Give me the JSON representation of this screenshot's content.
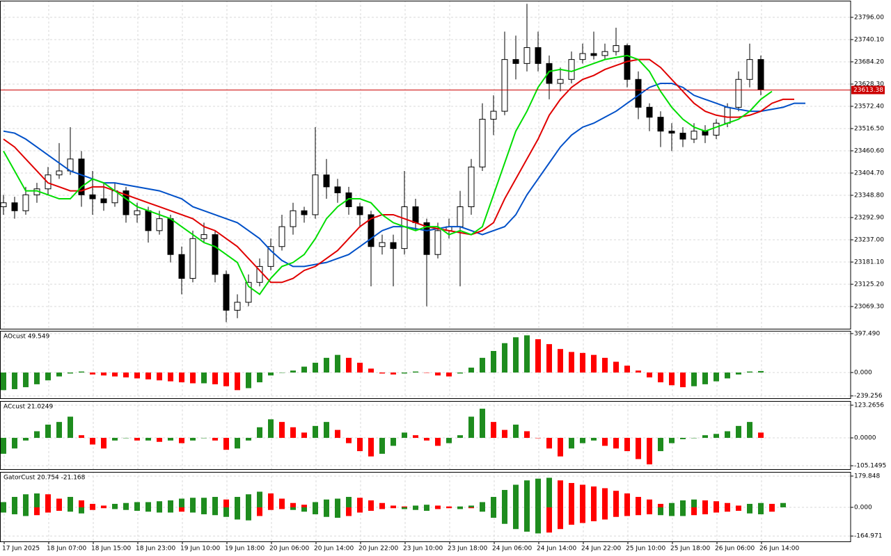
{
  "chart_data": [
    {
      "type": "candlestick",
      "categories": [
        "17 Jun 2025",
        null,
        null,
        null,
        "18 Jun 07:00",
        null,
        null,
        null,
        "18 Jun 15:00",
        null,
        null,
        null,
        "18 Jun 23:00",
        null,
        null,
        null,
        "19 Jun 10:00",
        null,
        null,
        null,
        "19 Jun 18:00",
        null,
        null,
        null,
        "20 Jun 06:00",
        null,
        null,
        null,
        "20 Jun 14:00",
        null,
        null,
        null,
        "20 Jun 22:00",
        null,
        null,
        null,
        "23 Jun 10:00",
        null,
        null,
        null,
        "23 Jun 18:00",
        null,
        null,
        null,
        "24 Jun 06:00",
        null,
        null,
        null,
        "24 Jun 14:00",
        null,
        null,
        null,
        "24 Jun 22:00",
        null,
        null,
        null,
        "25 Jun 10:00",
        null,
        null,
        null,
        "25 Jun 18:00",
        null,
        null,
        null,
        "26 Jun 06:00",
        null,
        null,
        null,
        "26 Jun 14:00",
        null,
        null,
        null,
        null
      ],
      "candles": [
        [
          23320,
          23350,
          23300,
          23330
        ],
        [
          23330,
          23345,
          23290,
          23310
        ],
        [
          23310,
          23370,
          23300,
          23350
        ],
        [
          23350,
          23380,
          23330,
          23365
        ],
        [
          23365,
          23420,
          23350,
          23400
        ],
        [
          23400,
          23480,
          23390,
          23410
        ],
        [
          23410,
          23520,
          23400,
          23440
        ],
        [
          23440,
          23460,
          23320,
          23350
        ],
        [
          23350,
          23410,
          23300,
          23340
        ],
        [
          23340,
          23380,
          23310,
          23330
        ],
        [
          23330,
          23380,
          23320,
          23360
        ],
        [
          23360,
          23370,
          23280,
          23300
        ],
        [
          23300,
          23330,
          23280,
          23310
        ],
        [
          23310,
          23320,
          23230,
          23260
        ],
        [
          23260,
          23310,
          23250,
          23290
        ],
        [
          23290,
          23300,
          23180,
          23200
        ],
        [
          23200,
          23220,
          23100,
          23140
        ],
        [
          23140,
          23260,
          23130,
          23240
        ],
        [
          23240,
          23280,
          23230,
          23250
        ],
        [
          23250,
          23260,
          23130,
          23150
        ],
        [
          23150,
          23160,
          23030,
          23060
        ],
        [
          23060,
          23100,
          23040,
          23080
        ],
        [
          23080,
          23150,
          23070,
          23130
        ],
        [
          23130,
          23190,
          23120,
          23170
        ],
        [
          23170,
          23240,
          23160,
          23220
        ],
        [
          23220,
          23300,
          23210,
          23270
        ],
        [
          23270,
          23330,
          23250,
          23310
        ],
        [
          23310,
          23320,
          23280,
          23300
        ],
        [
          23300,
          23520,
          23290,
          23400
        ],
        [
          23400,
          23440,
          23340,
          23370
        ],
        [
          23370,
          23390,
          23330,
          23355
        ],
        [
          23355,
          23370,
          23300,
          23320
        ],
        [
          23320,
          23330,
          23270,
          23300
        ],
        [
          23300,
          23310,
          23120,
          23220
        ],
        [
          23220,
          23250,
          23200,
          23230
        ],
        [
          23230,
          23250,
          23120,
          23215
        ],
        [
          23215,
          23410,
          23200,
          23320
        ],
        [
          23320,
          23340,
          23260,
          23280
        ],
        [
          23280,
          23290,
          23070,
          23200
        ],
        [
          23200,
          23280,
          23190,
          23260
        ],
        [
          23260,
          23290,
          23240,
          23270
        ],
        [
          23270,
          23360,
          23120,
          23320
        ],
        [
          23320,
          23440,
          23300,
          23420
        ],
        [
          23420,
          23580,
          23410,
          23540
        ],
        [
          23540,
          23600,
          23500,
          23560
        ],
        [
          23560,
          23760,
          23550,
          23690
        ],
        [
          23690,
          23750,
          23640,
          23680
        ],
        [
          23680,
          23830,
          23660,
          23720
        ],
        [
          23720,
          23760,
          23660,
          23680
        ],
        [
          23680,
          23700,
          23590,
          23630
        ],
        [
          23630,
          23670,
          23610,
          23640
        ],
        [
          23640,
          23710,
          23630,
          23690
        ],
        [
          23690,
          23730,
          23680,
          23705
        ],
        [
          23705,
          23760,
          23690,
          23700
        ],
        [
          23700,
          23730,
          23690,
          23710
        ],
        [
          23710,
          23770,
          23700,
          23725
        ],
        [
          23725,
          23730,
          23620,
          23640
        ],
        [
          23640,
          23660,
          23540,
          23570
        ],
        [
          23570,
          23580,
          23510,
          23545
        ],
        [
          23545,
          23560,
          23470,
          23510
        ],
        [
          23510,
          23530,
          23460,
          23505
        ],
        [
          23505,
          23520,
          23470,
          23490
        ],
        [
          23490,
          23530,
          23480,
          23510
        ],
        [
          23510,
          23525,
          23480,
          23500
        ],
        [
          23500,
          23540,
          23490,
          23530
        ],
        [
          23530,
          23580,
          23520,
          23570
        ],
        [
          23570,
          23660,
          23560,
          23640
        ],
        [
          23640,
          23730,
          23620,
          23690
        ],
        [
          23690,
          23700,
          23600,
          23613.38
        ],
        null,
        null,
        null,
        null
      ],
      "up_color": "#ffffff",
      "down_color": "#000000",
      "series": [
        {
          "color": "#0050c8",
          "values": [
            23510,
            23505,
            23490,
            23470,
            23450,
            23430,
            23410,
            23400,
            23390,
            23380,
            23380,
            23375,
            23370,
            23365,
            23360,
            23350,
            23340,
            23320,
            23310,
            23300,
            23290,
            23280,
            23260,
            23240,
            23210,
            23185,
            23170,
            23170,
            23175,
            23180,
            23190,
            23200,
            23220,
            23240,
            23260,
            23270,
            23270,
            23265,
            23260,
            23265,
            23270,
            23270,
            23260,
            23250,
            23260,
            23270,
            23300,
            23350,
            23390,
            23430,
            23470,
            23500,
            23520,
            23530,
            23545,
            23560,
            23580,
            23600,
            23620,
            23630,
            23630,
            23620,
            23600,
            23590,
            23580,
            23570,
            23565,
            23560,
            23560,
            23565,
            23570,
            23580,
            23580
          ]
        },
        {
          "color": "#e00000",
          "values": [
            23490,
            23470,
            23440,
            23410,
            23380,
            23370,
            23360,
            23360,
            23370,
            23370,
            23360,
            23350,
            23340,
            23330,
            23320,
            23310,
            23300,
            23290,
            23270,
            23260,
            23240,
            23220,
            23190,
            23160,
            23130,
            23130,
            23140,
            23160,
            23170,
            23190,
            23210,
            23240,
            23270,
            23290,
            23300,
            23300,
            23290,
            23280,
            23270,
            23265,
            23260,
            23255,
            23250,
            23260,
            23280,
            23340,
            23390,
            23440,
            23490,
            23550,
            23590,
            23620,
            23640,
            23650,
            23665,
            23675,
            23685,
            23690,
            23690,
            23670,
            23640,
            23610,
            23580,
            23560,
            23550,
            23545,
            23545,
            23550,
            23560,
            23580,
            23590,
            23590,
            null
          ]
        },
        {
          "color": "#00dd00",
          "values": [
            23460,
            23410,
            23360,
            23360,
            23350,
            23340,
            23340,
            23370,
            23390,
            23380,
            23360,
            23340,
            23320,
            23310,
            23300,
            23290,
            23270,
            23250,
            23230,
            23220,
            23200,
            23180,
            23120,
            23100,
            23140,
            23170,
            23180,
            23200,
            23240,
            23290,
            23320,
            23340,
            23340,
            23330,
            23300,
            23280,
            23270,
            23260,
            23270,
            23270,
            23250,
            23260,
            23250,
            23270,
            23350,
            23430,
            23510,
            23560,
            23620,
            23660,
            23665,
            23660,
            23670,
            23680,
            23690,
            23695,
            23700,
            23690,
            23660,
            23610,
            23570,
            23540,
            23520,
            23510,
            23520,
            23530,
            23540,
            23560,
            23590,
            23610,
            null,
            null,
            null
          ]
        }
      ],
      "current_price": 23613.38,
      "price_line_color": "#cc0000",
      "ylim": [
        23013.5,
        23837.8
      ],
      "yticks": [
        {
          "value": 23796,
          "label": "23796.00"
        },
        {
          "value": 23740.1,
          "label": "23740.10"
        },
        {
          "value": 23684.2,
          "label": "23684.20"
        },
        {
          "value": 23628.3,
          "label": "23628.30"
        },
        {
          "value": 23572.4,
          "label": "23572.40"
        },
        {
          "value": 23516.5,
          "label": "23516.50"
        },
        {
          "value": 23460.6,
          "label": "23460.60"
        },
        {
          "value": 23404.7,
          "label": "23404.70"
        },
        {
          "value": 23348.8,
          "label": "23348.80"
        },
        {
          "value": 23292.9,
          "label": "23292.90"
        },
        {
          "value": 23237,
          "label": "23237.00"
        },
        {
          "value": 23181.1,
          "label": "23181.10"
        },
        {
          "value": 23125.2,
          "label": "23125.20"
        },
        {
          "value": 23069.3,
          "label": "23069.30"
        }
      ],
      "grid": true
    },
    {
      "type": "histogram",
      "title": "AOcust 49.549",
      "up_color": "#1e8c1e",
      "down_color": "#ff0000",
      "values": [
        -180,
        -170,
        -150,
        -120,
        -80,
        -40,
        -10,
        10,
        -20,
        -30,
        -40,
        -50,
        -60,
        -70,
        -80,
        -90,
        -100,
        -110,
        -110,
        -120,
        -140,
        -180,
        -160,
        -100,
        -30,
        0,
        20,
        60,
        100,
        150,
        180,
        150,
        100,
        40,
        -10,
        -20,
        -10,
        10,
        0,
        -30,
        -40,
        -10,
        50,
        150,
        220,
        300,
        360,
        380,
        340,
        290,
        240,
        210,
        200,
        180,
        150,
        110,
        70,
        20,
        -50,
        -100,
        -130,
        -150,
        -140,
        -120,
        -90,
        -60,
        -20,
        10,
        15,
        null,
        null,
        null,
        null
      ],
      "ylim": [
        -262.7,
        425.9
      ],
      "yticks": [
        {
          "value": 397.49,
          "label": "397.490"
        },
        {
          "value": 0,
          "label": "0.000"
        },
        -239.256
      ],
      "grid": true
    },
    {
      "type": "histogram",
      "title": "ACcust 21.0249",
      "up_color": "#1e8c1e",
      "down_color": "#ff0000",
      "values": [
        -60,
        -40,
        -10,
        25,
        50,
        60,
        80,
        10,
        -25,
        -40,
        -10,
        0,
        -10,
        -10,
        -15,
        -10,
        -20,
        -10,
        0,
        -10,
        -45,
        -40,
        -10,
        40,
        70,
        60,
        40,
        20,
        45,
        60,
        30,
        -20,
        -50,
        -70,
        -60,
        -30,
        20,
        10,
        -10,
        -30,
        -20,
        10,
        80,
        110,
        60,
        30,
        50,
        25,
        0,
        -40,
        -70,
        -40,
        -20,
        -10,
        -30,
        -40,
        -50,
        -80,
        -100,
        -50,
        -20,
        -5,
        0,
        10,
        15,
        25,
        45,
        60,
        20,
        null,
        null,
        null,
        null
      ],
      "ylim": [
        -117.9,
        139
      ],
      "yticks": [
        123.2656,
        {
          "value": 0,
          "label": "0.0000"
        },
        -105.1495
      ],
      "grid": true
    },
    {
      "type": "gator",
      "title": "GatorCust 20.754 -21.168",
      "up_color": "#1e8c1e",
      "down_color": "#ff0000",
      "series": [
        {
          "values": [
            30,
            60,
            75,
            80,
            75,
            50,
            60,
            40,
            20,
            10,
            20,
            25,
            30,
            30,
            35,
            40,
            50,
            55,
            55,
            60,
            45,
            60,
            75,
            90,
            80,
            50,
            25,
            15,
            30,
            45,
            50,
            60,
            55,
            40,
            25,
            10,
            5,
            10,
            15,
            10,
            5,
            5,
            10,
            30,
            60,
            100,
            130,
            155,
            165,
            170,
            155,
            140,
            130,
            120,
            110,
            95,
            80,
            60,
            45,
            20,
            25,
            40,
            45,
            40,
            35,
            25,
            10,
            20,
            25,
            20,
            25,
            null,
            null
          ]
        },
        {
          "values": [
            -30,
            -40,
            -50,
            -45,
            -30,
            -20,
            -25,
            -35,
            -15,
            -5,
            -10,
            -15,
            -20,
            -25,
            -30,
            -30,
            -25,
            -30,
            -40,
            -45,
            -55,
            -70,
            -75,
            -50,
            -15,
            -10,
            -15,
            -25,
            -40,
            -55,
            -60,
            -50,
            -30,
            -20,
            -10,
            -5,
            -10,
            -15,
            -20,
            -10,
            -5,
            -10,
            -5,
            -25,
            -60,
            -95,
            -125,
            -140,
            -150,
            -145,
            -125,
            -100,
            -90,
            -80,
            -70,
            -55,
            -50,
            -45,
            -40,
            -45,
            -50,
            -50,
            -45,
            -40,
            -30,
            -25,
            -20,
            -35,
            -40,
            -25,
            null,
            null,
            null
          ]
        }
      ],
      "ylim": [
        -196,
        203.8
      ],
      "yticks": [
        179.848,
        {
          "value": 0,
          "label": "0.000"
        },
        -164.971
      ],
      "grid": true
    }
  ]
}
